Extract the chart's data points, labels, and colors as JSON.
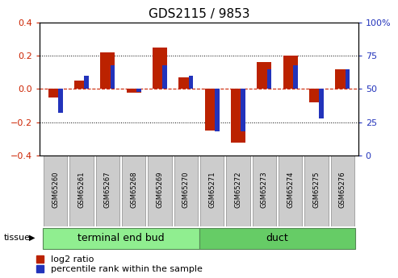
{
  "title": "GDS2115 / 9853",
  "samples": [
    "GSM65260",
    "GSM65261",
    "GSM65267",
    "GSM65268",
    "GSM65269",
    "GSM65270",
    "GSM65271",
    "GSM65272",
    "GSM65273",
    "GSM65274",
    "GSM65275",
    "GSM65276"
  ],
  "log2_ratio": [
    -0.05,
    0.05,
    0.22,
    -0.02,
    0.25,
    0.07,
    -0.25,
    -0.32,
    0.16,
    0.2,
    -0.08,
    0.12
  ],
  "percentile_rank": [
    32,
    60,
    68,
    48,
    68,
    60,
    18,
    18,
    65,
    68,
    28,
    65
  ],
  "groups": [
    {
      "label": "terminal end bud",
      "start": 0,
      "end": 6,
      "color": "#90EE90"
    },
    {
      "label": "duct",
      "start": 6,
      "end": 12,
      "color": "#66CC66"
    }
  ],
  "tissue_label": "tissue",
  "ylim_left": [
    -0.4,
    0.4
  ],
  "ylim_right": [
    0,
    100
  ],
  "yticks_left": [
    -0.4,
    -0.2,
    0.0,
    0.2,
    0.4
  ],
  "yticks_right": [
    0,
    25,
    50,
    75,
    100
  ],
  "bar_color_red": "#BB2200",
  "bar_color_blue": "#2233BB",
  "dashed_line_color": "#CC2200",
  "grid_color": "#000000",
  "bg_color": "#FFFFFF",
  "tick_label_color_left": "#CC2200",
  "tick_label_color_right": "#2233BB",
  "legend_red_label": "log2 ratio",
  "legend_blue_label": "percentile rank within the sample",
  "red_bar_width": 0.55,
  "blue_bar_width": 0.18,
  "title_fontsize": 11,
  "tick_fontsize": 8,
  "legend_fontsize": 8,
  "sample_fontsize": 6,
  "group_label_fontsize": 9,
  "sample_box_color": "#CCCCCC",
  "sample_box_edge": "#999999"
}
